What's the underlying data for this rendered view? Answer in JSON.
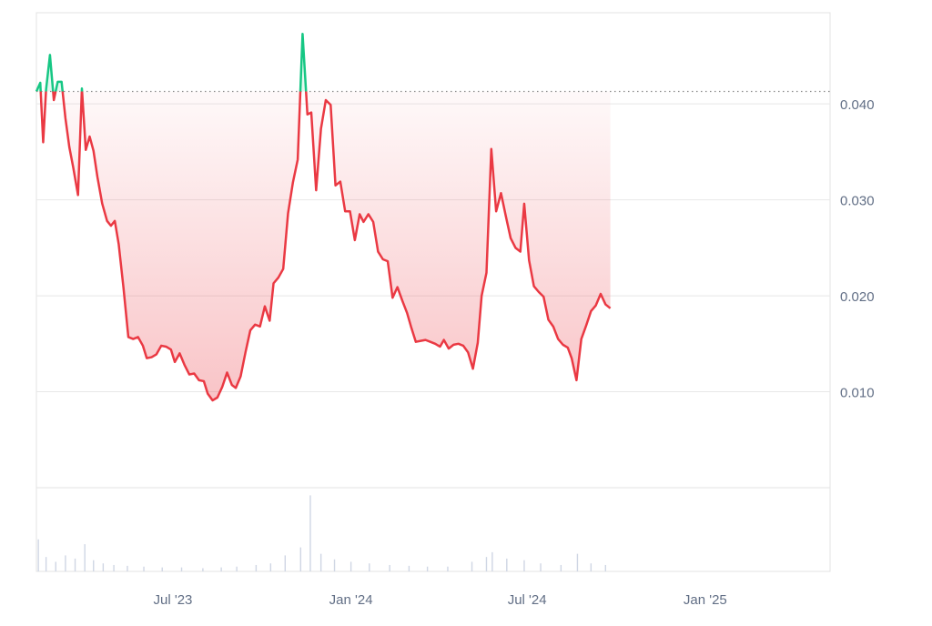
{
  "chart_data": {
    "type": "line",
    "title": "",
    "xlabel": "",
    "ylabel": "",
    "baseline": 0.0413,
    "ylim": [
      0,
      0.0495
    ],
    "y_ticks": [
      {
        "value": 0.04,
        "label": "0.040"
      },
      {
        "value": 0.03,
        "label": "0.030"
      },
      {
        "value": 0.02,
        "label": "0.020"
      },
      {
        "value": 0.01,
        "label": "0.010"
      }
    ],
    "x_range": [
      "2023-02-10",
      "2025-05-10"
    ],
    "x_ticks": [
      {
        "date": "2023-07-01",
        "label": "Jul '23"
      },
      {
        "date": "2024-01-01",
        "label": "Jan '24"
      },
      {
        "date": "2024-07-01",
        "label": "Jul '24"
      },
      {
        "date": "2025-01-01",
        "label": "Jan '25"
      }
    ],
    "colors": {
      "above": "#16c784",
      "below": "#ea3943",
      "baseline": "#8a8a8a",
      "grid": "#e8e8e8",
      "axis_text": "#616e85"
    },
    "series": [
      {
        "points": [
          [
            "2023-02-10",
            0.0413
          ],
          [
            "2023-02-14",
            0.0422
          ],
          [
            "2023-02-17",
            0.036
          ],
          [
            "2023-02-20",
            0.0415
          ],
          [
            "2023-02-24",
            0.0451
          ],
          [
            "2023-02-28",
            0.0404
          ],
          [
            "2023-03-04",
            0.0423
          ],
          [
            "2023-03-08",
            0.0423
          ],
          [
            "2023-03-12",
            0.0385
          ],
          [
            "2023-03-16",
            0.0355
          ],
          [
            "2023-03-20",
            0.0334
          ],
          [
            "2023-03-25",
            0.0305
          ],
          [
            "2023-03-29",
            0.0416
          ],
          [
            "2023-04-02",
            0.0352
          ],
          [
            "2023-04-06",
            0.0366
          ],
          [
            "2023-04-10",
            0.0351
          ],
          [
            "2023-04-14",
            0.0324
          ],
          [
            "2023-04-19",
            0.0296
          ],
          [
            "2023-04-24",
            0.0278
          ],
          [
            "2023-04-28",
            0.0273
          ],
          [
            "2023-05-02",
            0.0278
          ],
          [
            "2023-05-06",
            0.0254
          ],
          [
            "2023-05-11",
            0.0208
          ],
          [
            "2023-05-16",
            0.0157
          ],
          [
            "2023-05-21",
            0.0155
          ],
          [
            "2023-05-26",
            0.0157
          ],
          [
            "2023-05-31",
            0.0148
          ],
          [
            "2023-06-04",
            0.0135
          ],
          [
            "2023-06-09",
            0.0136
          ],
          [
            "2023-06-14",
            0.0139
          ],
          [
            "2023-06-19",
            0.0148
          ],
          [
            "2023-06-24",
            0.0147
          ],
          [
            "2023-06-29",
            0.0144
          ],
          [
            "2023-07-03",
            0.0131
          ],
          [
            "2023-07-08",
            0.014
          ],
          [
            "2023-07-13",
            0.0128
          ],
          [
            "2023-07-18",
            0.0118
          ],
          [
            "2023-07-23",
            0.0119
          ],
          [
            "2023-07-28",
            0.0112
          ],
          [
            "2023-08-02",
            0.0111
          ],
          [
            "2023-08-06",
            0.0098
          ],
          [
            "2023-08-11",
            0.0091
          ],
          [
            "2023-08-16",
            0.0094
          ],
          [
            "2023-08-21",
            0.0105
          ],
          [
            "2023-08-26",
            0.012
          ],
          [
            "2023-08-31",
            0.0107
          ],
          [
            "2023-09-04",
            0.0104
          ],
          [
            "2023-09-09",
            0.0116
          ],
          [
            "2023-09-14",
            0.0141
          ],
          [
            "2023-09-19",
            0.0164
          ],
          [
            "2023-09-24",
            0.017
          ],
          [
            "2023-09-29",
            0.0168
          ],
          [
            "2023-10-04",
            0.0189
          ],
          [
            "2023-10-09",
            0.0174
          ],
          [
            "2023-10-13",
            0.0213
          ],
          [
            "2023-10-18",
            0.0219
          ],
          [
            "2023-10-23",
            0.0228
          ],
          [
            "2023-10-28",
            0.0286
          ],
          [
            "2023-11-02",
            0.0318
          ],
          [
            "2023-11-07",
            0.0342
          ],
          [
            "2023-11-12",
            0.0473
          ],
          [
            "2023-11-17",
            0.0389
          ],
          [
            "2023-11-21",
            0.0391
          ],
          [
            "2023-11-26",
            0.031
          ],
          [
            "2023-12-01",
            0.0374
          ],
          [
            "2023-12-06",
            0.0404
          ],
          [
            "2023-12-11",
            0.0399
          ],
          [
            "2023-12-16",
            0.0315
          ],
          [
            "2023-12-21",
            0.0319
          ],
          [
            "2023-12-26",
            0.0288
          ],
          [
            "2023-12-31",
            0.0288
          ],
          [
            "2024-01-05",
            0.0258
          ],
          [
            "2024-01-10",
            0.0285
          ],
          [
            "2024-01-14",
            0.0277
          ],
          [
            "2024-01-19",
            0.0285
          ],
          [
            "2024-01-24",
            0.0277
          ],
          [
            "2024-01-29",
            0.0246
          ],
          [
            "2024-02-03",
            0.0238
          ],
          [
            "2024-02-08",
            0.0236
          ],
          [
            "2024-02-13",
            0.0198
          ],
          [
            "2024-02-18",
            0.0209
          ],
          [
            "2024-02-23",
            0.0195
          ],
          [
            "2024-02-28",
            0.0182
          ],
          [
            "2024-03-03",
            0.0168
          ],
          [
            "2024-03-08",
            0.0152
          ],
          [
            "2024-03-13",
            0.0153
          ],
          [
            "2024-03-18",
            0.0154
          ],
          [
            "2024-03-23",
            0.0152
          ],
          [
            "2024-03-28",
            0.015
          ],
          [
            "2024-04-02",
            0.0147
          ],
          [
            "2024-04-06",
            0.0154
          ],
          [
            "2024-04-11",
            0.0145
          ],
          [
            "2024-04-16",
            0.0149
          ],
          [
            "2024-04-21",
            0.015
          ],
          [
            "2024-04-26",
            0.0148
          ],
          [
            "2024-05-01",
            0.0141
          ],
          [
            "2024-05-06",
            0.0124
          ],
          [
            "2024-05-11",
            0.0151
          ],
          [
            "2024-05-15",
            0.02
          ],
          [
            "2024-05-20",
            0.0224
          ],
          [
            "2024-05-25",
            0.0353
          ],
          [
            "2024-05-30",
            0.0288
          ],
          [
            "2024-06-04",
            0.0307
          ],
          [
            "2024-06-09",
            0.0283
          ],
          [
            "2024-06-14",
            0.026
          ],
          [
            "2024-06-19",
            0.025
          ],
          [
            "2024-06-24",
            0.0246
          ],
          [
            "2024-06-28",
            0.0296
          ],
          [
            "2024-07-03",
            0.0237
          ],
          [
            "2024-07-08",
            0.021
          ],
          [
            "2024-07-13",
            0.0204
          ],
          [
            "2024-07-18",
            0.0199
          ],
          [
            "2024-07-23",
            0.0175
          ],
          [
            "2024-07-28",
            0.0168
          ],
          [
            "2024-08-02",
            0.0155
          ],
          [
            "2024-08-07",
            0.0149
          ],
          [
            "2024-08-12",
            0.0146
          ],
          [
            "2024-08-16",
            0.0135
          ],
          [
            "2024-08-21",
            0.0112
          ],
          [
            "2024-08-26",
            0.0155
          ],
          [
            "2024-08-31",
            0.0169
          ],
          [
            "2024-09-05",
            0.0184
          ],
          [
            "2024-09-10",
            0.019
          ],
          [
            "2024-09-15",
            0.0202
          ],
          [
            "2024-09-20",
            0.0191
          ],
          [
            "2024-09-25",
            0.0187
          ]
        ]
      }
    ],
    "volume": [
      {
        "date": "2023-02-12",
        "value": 0.4
      },
      {
        "date": "2023-02-20",
        "value": 0.18
      },
      {
        "date": "2023-03-02",
        "value": 0.12
      },
      {
        "date": "2023-03-12",
        "value": 0.2
      },
      {
        "date": "2023-03-22",
        "value": 0.16
      },
      {
        "date": "2023-04-01",
        "value": 0.34
      },
      {
        "date": "2023-04-10",
        "value": 0.14
      },
      {
        "date": "2023-04-20",
        "value": 0.1
      },
      {
        "date": "2023-05-01",
        "value": 0.08
      },
      {
        "date": "2023-05-15",
        "value": 0.07
      },
      {
        "date": "2023-06-01",
        "value": 0.06
      },
      {
        "date": "2023-06-20",
        "value": 0.05
      },
      {
        "date": "2023-07-10",
        "value": 0.05
      },
      {
        "date": "2023-08-01",
        "value": 0.04
      },
      {
        "date": "2023-08-20",
        "value": 0.05
      },
      {
        "date": "2023-09-05",
        "value": 0.06
      },
      {
        "date": "2023-09-25",
        "value": 0.08
      },
      {
        "date": "2023-10-10",
        "value": 0.1
      },
      {
        "date": "2023-10-25",
        "value": 0.2
      },
      {
        "date": "2023-11-10",
        "value": 0.3
      },
      {
        "date": "2023-11-20",
        "value": 0.95
      },
      {
        "date": "2023-12-01",
        "value": 0.22
      },
      {
        "date": "2023-12-15",
        "value": 0.15
      },
      {
        "date": "2024-01-01",
        "value": 0.12
      },
      {
        "date": "2024-01-20",
        "value": 0.1
      },
      {
        "date": "2024-02-10",
        "value": 0.08
      },
      {
        "date": "2024-03-01",
        "value": 0.07
      },
      {
        "date": "2024-03-20",
        "value": 0.06
      },
      {
        "date": "2024-04-10",
        "value": 0.06
      },
      {
        "date": "2024-05-05",
        "value": 0.12
      },
      {
        "date": "2024-05-20",
        "value": 0.18
      },
      {
        "date": "2024-05-26",
        "value": 0.24
      },
      {
        "date": "2024-06-10",
        "value": 0.16
      },
      {
        "date": "2024-06-28",
        "value": 0.14
      },
      {
        "date": "2024-07-15",
        "value": 0.1
      },
      {
        "date": "2024-08-05",
        "value": 0.08
      },
      {
        "date": "2024-08-22",
        "value": 0.22
      },
      {
        "date": "2024-09-05",
        "value": 0.1
      },
      {
        "date": "2024-09-20",
        "value": 0.08
      }
    ]
  }
}
